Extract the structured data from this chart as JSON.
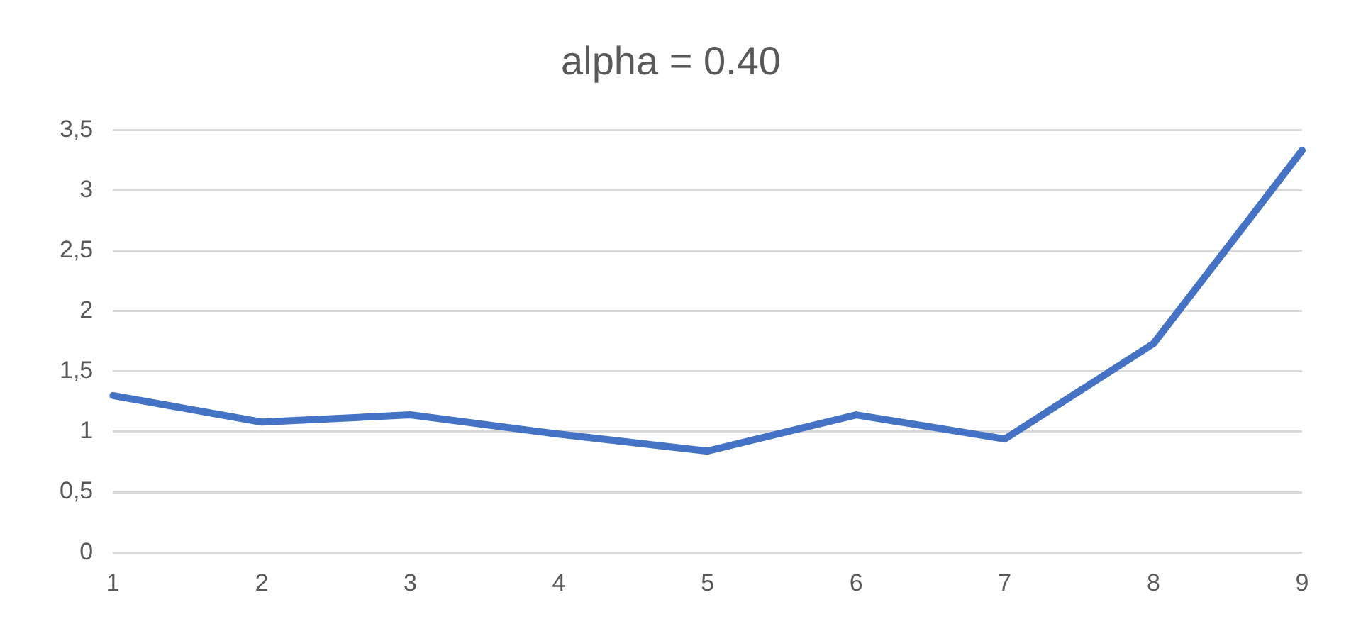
{
  "chart_data": {
    "type": "line",
    "title": "alpha = 0.40",
    "categories": [
      "1",
      "2",
      "3",
      "4",
      "5",
      "6",
      "7",
      "8",
      "9"
    ],
    "series": [
      {
        "color": "#4472c4",
        "values": [
          1.3,
          1.08,
          1.14,
          0.98,
          0.84,
          1.14,
          0.94,
          1.73,
          3.33
        ]
      }
    ],
    "ylim": [
      0,
      3.5
    ],
    "yticks": [
      0,
      {
        "value": 0.5,
        "label": "0,5"
      },
      1,
      {
        "value": 1.5,
        "label": "1,5"
      },
      2,
      {
        "value": 2.5,
        "label": "2,5"
      },
      3,
      {
        "value": 3.5,
        "label": "3,5"
      }
    ],
    "grid": "y",
    "legend": false,
    "marker": "none",
    "line_style": "solid"
  }
}
